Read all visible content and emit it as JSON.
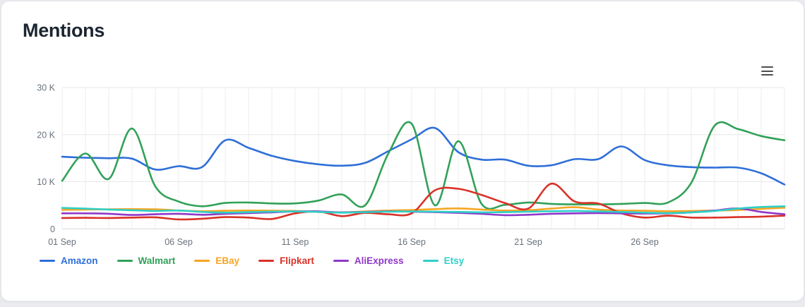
{
  "header": {
    "title": "Mentions"
  },
  "toolbar": {
    "context_menu_icon": "hamburger"
  },
  "colors": {
    "background": "#e9ebee",
    "card": "#ffffff",
    "grid_vertical": "#ededed",
    "grid_horizontal": "#e7e7e7",
    "axis_line": "#d2d6da",
    "tick_text": "#68727c",
    "title_text": "#1c2631"
  },
  "chart_data": {
    "type": "line",
    "title": "Mentions",
    "style": "smooth-spline",
    "grid": true,
    "legend_position": "bottom-left",
    "ylim": [
      0,
      30000
    ],
    "y_ticks": [
      {
        "value": 0,
        "label": "0"
      },
      {
        "value": 10000,
        "label": "10 K"
      },
      {
        "value": 20000,
        "label": "20 K"
      },
      {
        "value": 30000,
        "label": "30 K"
      }
    ],
    "x_dates": [
      "01 Sep",
      "02 Sep",
      "03 Sep",
      "04 Sep",
      "05 Sep",
      "06 Sep",
      "07 Sep",
      "08 Sep",
      "09 Sep",
      "10 Sep",
      "11 Sep",
      "12 Sep",
      "13 Sep",
      "14 Sep",
      "15 Sep",
      "16 Sep",
      "17 Sep",
      "18 Sep",
      "19 Sep",
      "20 Sep",
      "21 Sep",
      "22 Sep",
      "23 Sep",
      "24 Sep",
      "25 Sep",
      "26 Sep",
      "27 Sep",
      "28 Sep",
      "29 Sep",
      "30 Sep",
      "01 Oct",
      "02 Oct"
    ],
    "x_tick_labels": [
      "01 Sep",
      "06 Sep",
      "11 Sep",
      "16 Sep",
      "21 Sep",
      "26 Sep"
    ],
    "x_tick_indices": [
      0,
      5,
      10,
      15,
      20,
      25
    ],
    "series": [
      {
        "name": "Amazon",
        "color": "#2e6fd8",
        "values": [
          15300,
          15100,
          15000,
          14900,
          12600,
          13300,
          13100,
          18800,
          17200,
          15500,
          14400,
          13700,
          13400,
          14000,
          16500,
          19000,
          21400,
          16300,
          14700,
          14700,
          13400,
          13500,
          14800,
          14800,
          17500,
          14600,
          13500,
          13100,
          13000,
          13000,
          11800,
          9400
        ]
      },
      {
        "name": "Walmart",
        "color": "#31a158",
        "values": [
          10200,
          16000,
          10600,
          21300,
          9000,
          5800,
          4800,
          5500,
          5600,
          5400,
          5400,
          6000,
          7300,
          5000,
          16000,
          22300,
          5000,
          18600,
          5300,
          5100,
          5600,
          5300,
          5200,
          5200,
          5300,
          5500,
          5600,
          9800,
          21900,
          21200,
          19700,
          18800
        ]
      },
      {
        "name": "EBay",
        "color": "#f6a623",
        "values": [
          4050,
          4100,
          4150,
          4200,
          4150,
          3900,
          3750,
          3850,
          3900,
          3850,
          3800,
          3600,
          3500,
          3700,
          3900,
          4000,
          4200,
          4350,
          4100,
          3900,
          3950,
          4300,
          4600,
          4100,
          3900,
          3850,
          3750,
          3800,
          3900,
          4000,
          4250,
          4500
        ]
      },
      {
        "name": "Flipkart",
        "color": "#d93228",
        "values": [
          2300,
          2350,
          2300,
          2400,
          2450,
          2000,
          2150,
          2500,
          2400,
          2100,
          3300,
          3700,
          2700,
          3400,
          3100,
          3300,
          8200,
          8500,
          7200,
          5500,
          4300,
          9600,
          5800,
          5400,
          3300,
          2400,
          2800,
          2400,
          2400,
          2500,
          2600,
          2800
        ]
      },
      {
        "name": "AliExpress",
        "color": "#9038c8",
        "values": [
          3300,
          3300,
          3200,
          2950,
          3100,
          3200,
          3000,
          3200,
          3350,
          3500,
          3700,
          3700,
          3500,
          3600,
          3700,
          3650,
          3550,
          3400,
          3200,
          2900,
          3000,
          3200,
          3300,
          3350,
          3300,
          3250,
          3300,
          3500,
          3900,
          4350,
          3600,
          3100
        ]
      },
      {
        "name": "Etsy",
        "color": "#2fcfc7",
        "values": [
          4450,
          4300,
          4100,
          3950,
          3800,
          3900,
          3600,
          3450,
          3550,
          3650,
          3700,
          3600,
          3450,
          3550,
          3650,
          3700,
          3650,
          3600,
          3500,
          3550,
          3650,
          3750,
          3800,
          3700,
          3600,
          3450,
          3350,
          3500,
          3800,
          4300,
          4650,
          4800
        ]
      }
    ]
  }
}
